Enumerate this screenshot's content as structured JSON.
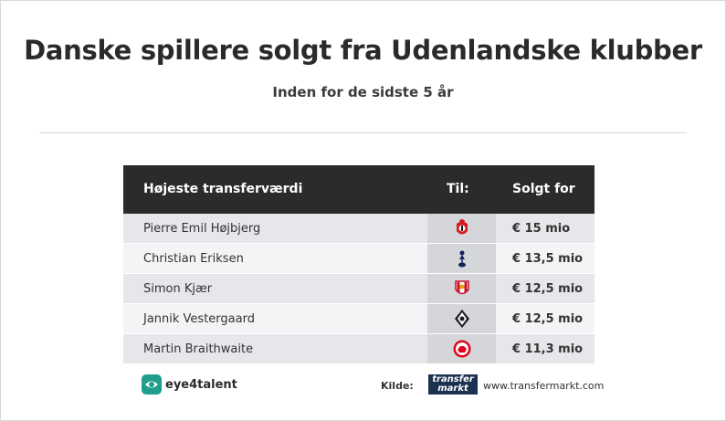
{
  "header": {
    "title": "Danske spillere solgt fra Udenlandske klubber",
    "subtitle": "Inden for de sidste 5 år"
  },
  "table": {
    "columns": [
      "Højeste transferværdi",
      "Til:",
      "Solgt for"
    ],
    "rows": [
      {
        "name": "Pierre Emil Højbjerg",
        "club_icon": "southampton-crest-icon",
        "price": "€ 15 mio"
      },
      {
        "name": "Christian Eriksen",
        "club_icon": "tottenham-crest-icon",
        "price": "€ 13,5 mio"
      },
      {
        "name": "Simon Kjær",
        "club_icon": "sevilla-crest-icon",
        "price": "€ 12,5 mio"
      },
      {
        "name": "Jannik Vestergaard",
        "club_icon": "gladbach-crest-icon",
        "price": "€ 12,5 mio"
      },
      {
        "name": "Martin Braithwaite",
        "club_icon": "middlesbrough-crest-icon",
        "price": "€ 11,3 mio"
      }
    ]
  },
  "footer": {
    "brand": "eye4talent",
    "source_label": "Kilde:",
    "source_logo_line1": "transfer",
    "source_logo_line2": "markt",
    "source_url": "www.transfermarkt.com"
  },
  "colors": {
    "header_bg": "#2b2b2b",
    "row_odd": "#e6e7ea",
    "row_even": "#f3f4f6",
    "brand_teal": "#1f9e8c",
    "transfermarkt_navy": "#1a3151"
  }
}
